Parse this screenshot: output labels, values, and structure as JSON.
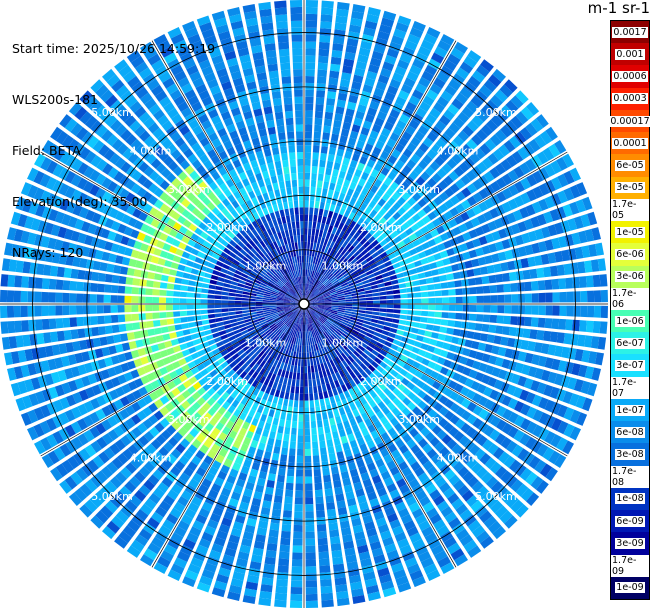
{
  "header": {
    "start_time": "Start time: 2025/10/26 14:59:19",
    "instrument": "WLS200s-181",
    "field": "Field: BETA",
    "elevation": "Elevation(deg): 35.00",
    "nrays": "NRays: 120"
  },
  "colorbar": {
    "unit": "m-1 sr-1",
    "levels": [
      "0.0017",
      "0.001",
      "0.0006",
      "0.0003",
      "0.00017",
      "0.0001",
      "6e-05",
      "3e-05",
      "1.7e-05",
      "1e-05",
      "6e-06",
      "3e-06",
      "1.7e-06",
      "1e-06",
      "6e-07",
      "3e-07",
      "1.7e-07",
      "1e-07",
      "6e-08",
      "3e-08",
      "1.7e-08",
      "1e-08",
      "6e-09",
      "3e-09",
      "1.7e-09",
      "1e-09"
    ],
    "colors": [
      "#8c0000",
      "#c00000",
      "#e00000",
      "#ff2000",
      "#ff4a00",
      "#ff6a00",
      "#ff8c00",
      "#ffb000",
      "#ffd000",
      "#f2f200",
      "#e4ff3a",
      "#b8ff5c",
      "#7cff7c",
      "#48ffb4",
      "#2cf2e6",
      "#1ae0ff",
      "#10c8ff",
      "#0aaaf8",
      "#0a8ceb",
      "#0870de",
      "#0650d0",
      "#0034c2",
      "#0018b4",
      "#00009c",
      "#000080",
      "#000064"
    ]
  },
  "chart_data": {
    "type": "heatmap",
    "projection": "polar PPI",
    "field": "BETA",
    "elevation_deg": 35.0,
    "n_rays": 120,
    "max_range_km": 5.6,
    "range_rings_km": [
      1,
      2,
      3,
      4,
      5
    ],
    "ring_labels": [
      "1.00km",
      "2.00km",
      "3.00km",
      "4.00km",
      "5.00km"
    ],
    "structure": [
      {
        "region": "center to ~1.8 km",
        "typical_value": "1e-08 to 3e-08"
      },
      {
        "region": "ring ~1.8-2.8 km",
        "typical_value": "1e-07 to 3e-07"
      },
      {
        "region": "west/southwest arc ~2.5-3.3 km",
        "typical_value": "1e-06 to 3e-06"
      },
      {
        "region": "outer field 3-5.6 km",
        "typical_value": "3e-08 to 1e-07"
      }
    ]
  }
}
